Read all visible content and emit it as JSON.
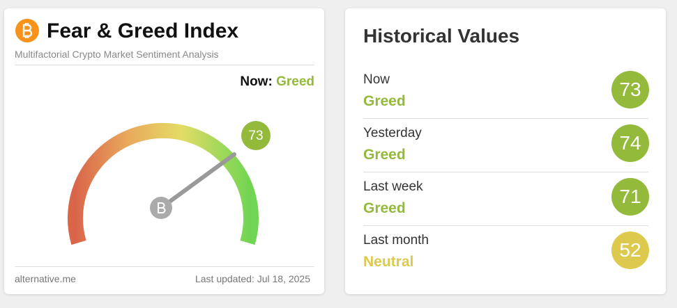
{
  "left": {
    "title": "Fear & Greed Index",
    "subtitle": "Multifactorial Crypto Market Sentiment Analysis",
    "now_label": "Now:",
    "now_status": "Greed",
    "value": 73,
    "color": "#94ba3b",
    "source": "alternative.me",
    "updated": "Last updated: Jul 18, 2025"
  },
  "right": {
    "title": "Historical Values",
    "rows": [
      {
        "label": "Now",
        "status": "Greed",
        "value": 73,
        "color": "#94ba3b"
      },
      {
        "label": "Yesterday",
        "status": "Greed",
        "value": 74,
        "color": "#94ba3b"
      },
      {
        "label": "Last week",
        "status": "Greed",
        "value": 71,
        "color": "#94ba3b"
      },
      {
        "label": "Last month",
        "status": "Neutral",
        "value": 52,
        "color": "#dcc94e"
      }
    ]
  }
}
